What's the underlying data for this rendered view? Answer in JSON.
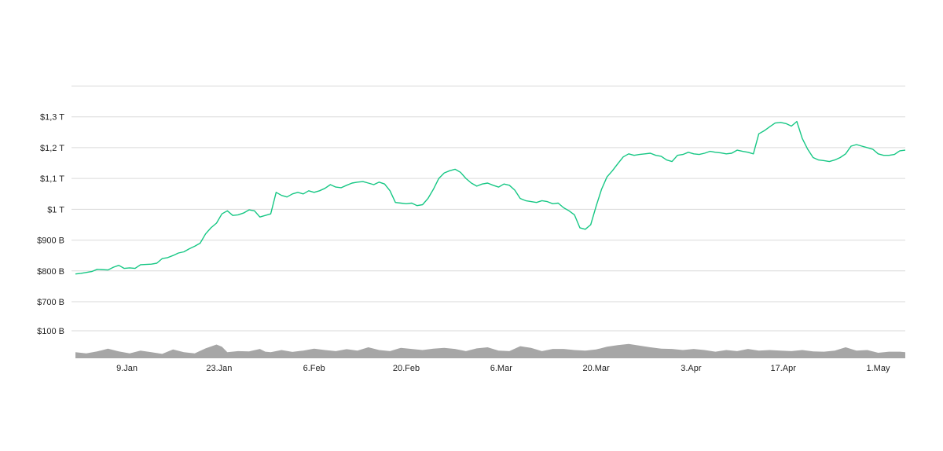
{
  "chart_data": {
    "type": "line",
    "title": "",
    "xlabel": "",
    "ylabel": "",
    "grid": true,
    "colors": {
      "price_line": "#16c784",
      "volume_fill": "#a6a6a6",
      "grid": "#d9d9d9",
      "axis_text": "#222222"
    },
    "price": {
      "yticks": [
        {
          "label": "$700 B",
          "value": 700
        },
        {
          "label": "$800 B",
          "value": 800
        },
        {
          "label": "$900 B",
          "value": 900
        },
        {
          "label": "$1 T",
          "value": 1000
        },
        {
          "label": "$1,1 T",
          "value": 1100
        },
        {
          "label": "$1,2 T",
          "value": 1200
        },
        {
          "label": "$1,3 T",
          "value": 1300
        }
      ],
      "ylim": [
        700,
        1400
      ],
      "series": [
        {
          "values": [
            [
              0,
              790
            ],
            [
              1,
              792
            ],
            [
              3,
              798
            ],
            [
              4,
              805
            ],
            [
              6,
              803
            ],
            [
              7,
              812
            ],
            [
              8,
              818
            ],
            [
              9,
              808
            ],
            [
              10,
              810
            ],
            [
              11,
              808
            ],
            [
              12,
              820
            ],
            [
              14,
              822
            ],
            [
              15,
              825
            ],
            [
              16,
              840
            ],
            [
              17,
              843
            ],
            [
              18,
              850
            ],
            [
              19,
              858
            ],
            [
              20,
              862
            ],
            [
              21,
              872
            ],
            [
              22,
              880
            ],
            [
              23,
              890
            ],
            [
              24,
              920
            ],
            [
              25,
              940
            ],
            [
              26,
              955
            ],
            [
              27,
              985
            ],
            [
              28,
              995
            ],
            [
              29,
              980
            ],
            [
              30,
              982
            ],
            [
              31,
              988
            ],
            [
              32,
              998
            ],
            [
              33,
              995
            ],
            [
              34,
              975
            ],
            [
              35,
              980
            ],
            [
              36,
              985
            ],
            [
              37,
              1055
            ],
            [
              38,
              1045
            ],
            [
              39,
              1040
            ],
            [
              40,
              1050
            ],
            [
              41,
              1055
            ],
            [
              42,
              1050
            ],
            [
              43,
              1060
            ],
            [
              44,
              1055
            ],
            [
              45,
              1060
            ],
            [
              46,
              1068
            ],
            [
              47,
              1080
            ],
            [
              48,
              1072
            ],
            [
              49,
              1070
            ],
            [
              50,
              1078
            ],
            [
              51,
              1085
            ],
            [
              52,
              1088
            ],
            [
              53,
              1090
            ],
            [
              54,
              1085
            ],
            [
              55,
              1080
            ],
            [
              56,
              1088
            ],
            [
              57,
              1082
            ],
            [
              58,
              1060
            ],
            [
              59,
              1022
            ],
            [
              60,
              1020
            ],
            [
              61,
              1018
            ],
            [
              62,
              1020
            ],
            [
              63,
              1012
            ],
            [
              64,
              1015
            ],
            [
              65,
              1035
            ],
            [
              66,
              1065
            ],
            [
              67,
              1100
            ],
            [
              68,
              1118
            ],
            [
              69,
              1125
            ],
            [
              70,
              1130
            ],
            [
              71,
              1120
            ],
            [
              72,
              1100
            ],
            [
              73,
              1085
            ],
            [
              74,
              1075
            ],
            [
              75,
              1082
            ],
            [
              76,
              1085
            ],
            [
              77,
              1078
            ],
            [
              78,
              1072
            ],
            [
              79,
              1082
            ],
            [
              80,
              1078
            ],
            [
              81,
              1062
            ],
            [
              82,
              1035
            ],
            [
              83,
              1028
            ],
            [
              84,
              1025
            ],
            [
              85,
              1022
            ],
            [
              86,
              1028
            ],
            [
              87,
              1025
            ],
            [
              88,
              1018
            ],
            [
              89,
              1020
            ],
            [
              90,
              1005
            ],
            [
              91,
              995
            ],
            [
              92,
              982
            ],
            [
              93,
              940
            ],
            [
              94,
              935
            ],
            [
              95,
              950
            ],
            [
              96,
              1010
            ],
            [
              97,
              1065
            ],
            [
              98,
              1105
            ],
            [
              99,
              1125
            ],
            [
              100,
              1148
            ],
            [
              101,
              1170
            ],
            [
              102,
              1180
            ],
            [
              103,
              1175
            ],
            [
              104,
              1178
            ],
            [
              105,
              1180
            ],
            [
              106,
              1182
            ],
            [
              107,
              1175
            ],
            [
              108,
              1172
            ],
            [
              109,
              1160
            ],
            [
              110,
              1155
            ],
            [
              111,
              1175
            ],
            [
              112,
              1178
            ],
            [
              113,
              1185
            ],
            [
              114,
              1180
            ],
            [
              115,
              1178
            ],
            [
              116,
              1182
            ],
            [
              117,
              1188
            ],
            [
              118,
              1185
            ],
            [
              119,
              1183
            ],
            [
              120,
              1180
            ],
            [
              121,
              1182
            ],
            [
              122,
              1192
            ],
            [
              123,
              1188
            ],
            [
              124,
              1185
            ],
            [
              125,
              1180
            ],
            [
              126,
              1245
            ],
            [
              127,
              1255
            ],
            [
              128,
              1268
            ],
            [
              129,
              1280
            ],
            [
              130,
              1282
            ],
            [
              131,
              1278
            ],
            [
              132,
              1270
            ],
            [
              133,
              1285
            ],
            [
              134,
              1230
            ],
            [
              135,
              1195
            ],
            [
              136,
              1168
            ],
            [
              137,
              1160
            ],
            [
              138,
              1158
            ],
            [
              139,
              1155
            ],
            [
              140,
              1160
            ],
            [
              141,
              1168
            ],
            [
              142,
              1180
            ],
            [
              143,
              1205
            ],
            [
              144,
              1210
            ],
            [
              145,
              1205
            ],
            [
              146,
              1200
            ],
            [
              147,
              1195
            ],
            [
              148,
              1180
            ],
            [
              149,
              1175
            ],
            [
              150,
              1175
            ],
            [
              151,
              1178
            ],
            [
              152,
              1190
            ],
            [
              153,
              1192
            ]
          ]
        }
      ]
    },
    "volume": {
      "yticks": [
        {
          "label": "$100 B",
          "value": 100
        }
      ],
      "ylim": [
        0,
        100
      ],
      "values": [
        [
          0,
          22
        ],
        [
          2,
          18
        ],
        [
          4,
          25
        ],
        [
          6,
          35
        ],
        [
          8,
          25
        ],
        [
          10,
          18
        ],
        [
          12,
          28
        ],
        [
          14,
          22
        ],
        [
          16,
          16
        ],
        [
          18,
          32
        ],
        [
          20,
          22
        ],
        [
          22,
          18
        ],
        [
          24,
          36
        ],
        [
          26,
          50
        ],
        [
          27,
          42
        ],
        [
          28,
          22
        ],
        [
          30,
          26
        ],
        [
          32,
          25
        ],
        [
          34,
          34
        ],
        [
          35,
          24
        ],
        [
          36,
          22
        ],
        [
          38,
          30
        ],
        [
          40,
          23
        ],
        [
          42,
          28
        ],
        [
          44,
          35
        ],
        [
          46,
          30
        ],
        [
          48,
          26
        ],
        [
          50,
          33
        ],
        [
          52,
          28
        ],
        [
          54,
          40
        ],
        [
          56,
          30
        ],
        [
          58,
          26
        ],
        [
          60,
          38
        ],
        [
          62,
          34
        ],
        [
          64,
          30
        ],
        [
          66,
          35
        ],
        [
          68,
          38
        ],
        [
          70,
          34
        ],
        [
          72,
          26
        ],
        [
          74,
          36
        ],
        [
          76,
          40
        ],
        [
          78,
          28
        ],
        [
          80,
          26
        ],
        [
          82,
          44
        ],
        [
          84,
          38
        ],
        [
          86,
          26
        ],
        [
          88,
          34
        ],
        [
          90,
          34
        ],
        [
          92,
          30
        ],
        [
          94,
          28
        ],
        [
          96,
          32
        ],
        [
          98,
          42
        ],
        [
          100,
          48
        ],
        [
          102,
          52
        ],
        [
          104,
          46
        ],
        [
          106,
          40
        ],
        [
          108,
          35
        ],
        [
          110,
          34
        ],
        [
          112,
          30
        ],
        [
          114,
          34
        ],
        [
          116,
          30
        ],
        [
          118,
          24
        ],
        [
          120,
          30
        ],
        [
          122,
          26
        ],
        [
          124,
          34
        ],
        [
          126,
          28
        ],
        [
          128,
          30
        ],
        [
          130,
          28
        ],
        [
          132,
          26
        ],
        [
          134,
          30
        ],
        [
          136,
          25
        ],
        [
          138,
          24
        ],
        [
          140,
          28
        ],
        [
          142,
          40
        ],
        [
          144,
          28
        ],
        [
          146,
          30
        ],
        [
          148,
          20
        ],
        [
          150,
          24
        ],
        [
          152,
          24
        ],
        [
          153,
          22
        ]
      ]
    },
    "x_axis": {
      "xlim": [
        0,
        153
      ],
      "ticks": [
        {
          "label": "9.Jan",
          "value": 9.5
        },
        {
          "label": "23.Jan",
          "value": 26.5
        },
        {
          "label": "6.Feb",
          "value": 44
        },
        {
          "label": "20.Feb",
          "value": 61
        },
        {
          "label": "6.Mar",
          "value": 78.5
        },
        {
          "label": "20.Mar",
          "value": 96
        },
        {
          "label": "3.Apr",
          "value": 113.5
        },
        {
          "label": "17.Apr",
          "value": 130.5
        },
        {
          "label": "1.May",
          "value": 148
        }
      ]
    }
  }
}
